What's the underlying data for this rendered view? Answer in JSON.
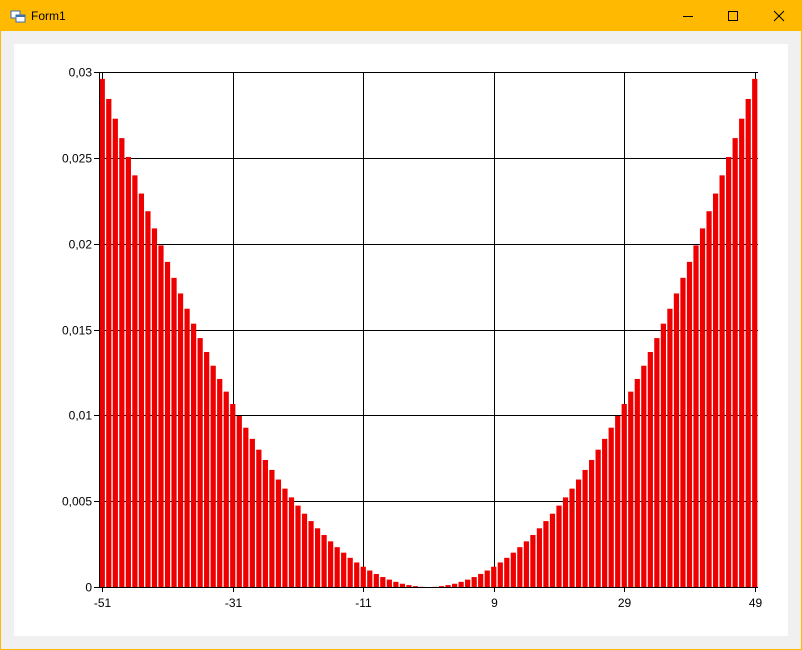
{
  "window": {
    "title": "Form1"
  },
  "chart_data": {
    "type": "bar",
    "color": "#ee0000",
    "grid": true,
    "x": [
      -51,
      -50,
      -49,
      -48,
      -47,
      -46,
      -45,
      -44,
      -43,
      -42,
      -41,
      -40,
      -39,
      -38,
      -37,
      -36,
      -35,
      -34,
      -33,
      -32,
      -31,
      -30,
      -29,
      -28,
      -27,
      -26,
      -25,
      -24,
      -23,
      -22,
      -21,
      -20,
      -19,
      -18,
      -17,
      -16,
      -15,
      -14,
      -13,
      -12,
      -11,
      -10,
      -9,
      -8,
      -7,
      -6,
      -5,
      -4,
      -3,
      -2,
      -1,
      0,
      1,
      2,
      3,
      4,
      5,
      6,
      7,
      8,
      9,
      10,
      11,
      12,
      13,
      14,
      15,
      16,
      17,
      18,
      19,
      20,
      21,
      22,
      23,
      24,
      25,
      26,
      27,
      28,
      29,
      30,
      31,
      32,
      33,
      34,
      35,
      36,
      37,
      38,
      39,
      40,
      41,
      42,
      43,
      44,
      45,
      46,
      47,
      48,
      49
    ],
    "values": [
      0.0296,
      0.02843,
      0.02728,
      0.02615,
      0.02505,
      0.02398,
      0.02292,
      0.02189,
      0.02089,
      0.0199,
      0.01894,
      0.01801,
      0.0171,
      0.01621,
      0.01534,
      0.0145,
      0.01369,
      0.01289,
      0.01212,
      0.01138,
      0.01066,
      0.00996,
      0.00928,
      0.00863,
      0.008,
      0.0074,
      0.00682,
      0.00626,
      0.00573,
      0.00522,
      0.00474,
      0.00427,
      0.00384,
      0.00342,
      0.00303,
      0.00266,
      0.00232,
      0.002,
      0.0017,
      0.00143,
      0.00118,
      0.00096,
      0.00076,
      0.00058,
      0.00043,
      0.0003,
      0.00019,
      0.00011,
      5e-05,
      1e-05,
      0,
      1e-05,
      5e-05,
      0.00011,
      0.00019,
      0.0003,
      0.00043,
      0.00058,
      0.00076,
      0.00096,
      0.00118,
      0.00143,
      0.0017,
      0.002,
      0.00232,
      0.00266,
      0.00303,
      0.00342,
      0.00384,
      0.00427,
      0.00474,
      0.00522,
      0.00573,
      0.00626,
      0.00682,
      0.0074,
      0.008,
      0.00863,
      0.00928,
      0.00996,
      0.01066,
      0.01138,
      0.01212,
      0.01289,
      0.01369,
      0.0145,
      0.01534,
      0.01621,
      0.0171,
      0.01801,
      0.01894,
      0.0199,
      0.02089,
      0.02189,
      0.02292,
      0.02398,
      0.02505,
      0.02615,
      0.02728,
      0.02843,
      0.0296
    ],
    "xlim": [
      -51.5,
      49.5
    ],
    "xticks": [
      -51,
      -31,
      -11,
      9,
      29,
      49
    ],
    "ylim": [
      0,
      0.03
    ],
    "yticks": [
      0,
      {
        "value": 0.005,
        "label": "0,005"
      },
      {
        "value": 0.01,
        "label": "0,01"
      },
      {
        "value": 0.015,
        "label": "0,015"
      },
      {
        "value": 0.02,
        "label": "0,02"
      },
      {
        "value": 0.025,
        "label": "0,025"
      },
      {
        "value": 0.03,
        "label": "0,03"
      }
    ]
  }
}
